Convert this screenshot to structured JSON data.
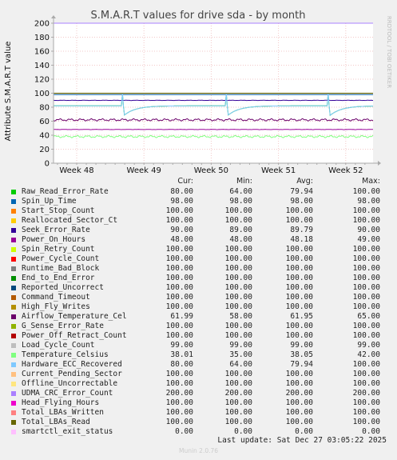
{
  "chart_data": {
    "type": "line",
    "title": "S.M.A.R.T values for drive sda - by month",
    "ylabel": "Attribute S.M.A.R.T value",
    "side_label": "RRDTOOL / TOBI OETIKER",
    "ylim": [
      0,
      200
    ],
    "y_ticks": [
      "0",
      "20",
      "40",
      "60",
      "80",
      "100",
      "120",
      "140",
      "160",
      "180",
      "200"
    ],
    "x_ticks": [
      "Week 48",
      "Week 49",
      "Week 50",
      "Week 51",
      "Week 52"
    ],
    "grid": true,
    "legend_placement": "bottom",
    "columns": [
      "Cur:",
      "Min:",
      "Avg:",
      "Max:"
    ],
    "series": [
      {
        "name": "Raw_Read_Error_Rate",
        "color": "#00cc00",
        "cur": "80.00",
        "min": "64.00",
        "avg": "79.94",
        "max": "100.00"
      },
      {
        "name": "Spin_Up_Time",
        "color": "#0066b3",
        "cur": "98.00",
        "min": "98.00",
        "avg": "98.00",
        "max": "98.00"
      },
      {
        "name": "Start_Stop_Count",
        "color": "#ff8000",
        "cur": "100.00",
        "min": "100.00",
        "avg": "100.00",
        "max": "100.00"
      },
      {
        "name": "Reallocated_Sector_Ct",
        "color": "#ffcc00",
        "cur": "100.00",
        "min": "100.00",
        "avg": "100.00",
        "max": "100.00"
      },
      {
        "name": "Seek_Error_Rate",
        "color": "#330099",
        "cur": "90.00",
        "min": "89.00",
        "avg": "89.79",
        "max": "90.00"
      },
      {
        "name": "Power_On_Hours",
        "color": "#990099",
        "cur": "48.00",
        "min": "48.00",
        "avg": "48.18",
        "max": "49.00"
      },
      {
        "name": "Spin_Retry_Count",
        "color": "#ccff00",
        "cur": "100.00",
        "min": "100.00",
        "avg": "100.00",
        "max": "100.00"
      },
      {
        "name": "Power_Cycle_Count",
        "color": "#ff0000",
        "cur": "100.00",
        "min": "100.00",
        "avg": "100.00",
        "max": "100.00"
      },
      {
        "name": "Runtime_Bad_Block",
        "color": "#808080",
        "cur": "100.00",
        "min": "100.00",
        "avg": "100.00",
        "max": "100.00"
      },
      {
        "name": "End_to_End_Error",
        "color": "#008f00",
        "cur": "100.00",
        "min": "100.00",
        "avg": "100.00",
        "max": "100.00"
      },
      {
        "name": "Reported_Uncorrect",
        "color": "#00487d",
        "cur": "100.00",
        "min": "100.00",
        "avg": "100.00",
        "max": "100.00"
      },
      {
        "name": "Command_Timeout",
        "color": "#b35a00",
        "cur": "100.00",
        "min": "100.00",
        "avg": "100.00",
        "max": "100.00"
      },
      {
        "name": "High_Fly_Writes",
        "color": "#b38f00",
        "cur": "100.00",
        "min": "100.00",
        "avg": "100.00",
        "max": "100.00"
      },
      {
        "name": "Airflow_Temperature_Cel",
        "color": "#6b006b",
        "cur": "61.99",
        "min": "58.00",
        "avg": "61.95",
        "max": "65.00"
      },
      {
        "name": "G_Sense_Error_Rate",
        "color": "#8fb300",
        "cur": "100.00",
        "min": "100.00",
        "avg": "100.00",
        "max": "100.00"
      },
      {
        "name": "Power_Off_Retract_Count",
        "color": "#b30000",
        "cur": "100.00",
        "min": "100.00",
        "avg": "100.00",
        "max": "100.00"
      },
      {
        "name": "Load_Cycle_Count",
        "color": "#bebebe",
        "cur": "99.00",
        "min": "99.00",
        "avg": "99.00",
        "max": "99.00"
      },
      {
        "name": "Temperature_Celsius",
        "color": "#80ff80",
        "cur": "38.01",
        "min": "35.00",
        "avg": "38.05",
        "max": "42.00"
      },
      {
        "name": "Hardware_ECC_Recovered",
        "color": "#80c9ff",
        "cur": "80.00",
        "min": "64.00",
        "avg": "79.94",
        "max": "100.00"
      },
      {
        "name": "Current_Pending_Sector",
        "color": "#ffc080",
        "cur": "100.00",
        "min": "100.00",
        "avg": "100.00",
        "max": "100.00"
      },
      {
        "name": "Offline_Uncorrectable",
        "color": "#ffe680",
        "cur": "100.00",
        "min": "100.00",
        "avg": "100.00",
        "max": "100.00"
      },
      {
        "name": "UDMA_CRC_Error_Count",
        "color": "#aa80ff",
        "cur": "200.00",
        "min": "200.00",
        "avg": "200.00",
        "max": "200.00"
      },
      {
        "name": "Head_Flying_Hours",
        "color": "#ee00cc",
        "cur": "100.00",
        "min": "100.00",
        "avg": "100.00",
        "max": "100.00"
      },
      {
        "name": "Total_LBAs_Written",
        "color": "#ff8080",
        "cur": "100.00",
        "min": "100.00",
        "avg": "100.00",
        "max": "100.00"
      },
      {
        "name": "Total_LBAs_Read",
        "color": "#666600",
        "cur": "100.00",
        "min": "100.00",
        "avg": "100.00",
        "max": "100.00"
      },
      {
        "name": "smartctl_exit_status",
        "color": "#ffbfff",
        "cur": "0.00",
        "min": "0.00",
        "avg": "0.00",
        "max": "0.00"
      }
    ]
  },
  "last_update": "Last update: Sat Dec 27 03:05:22 2025",
  "footer": "Munin 2.0.76"
}
